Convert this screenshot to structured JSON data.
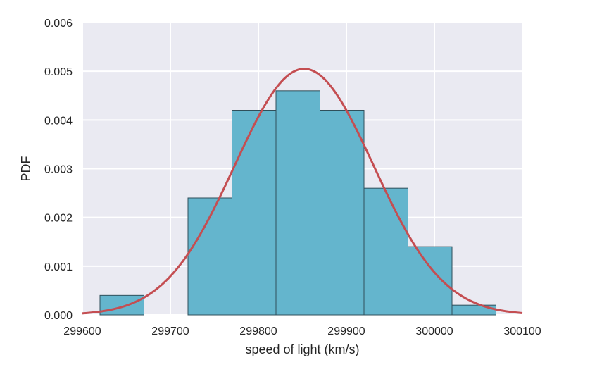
{
  "chart_data": {
    "type": "bar",
    "title": "",
    "xlabel": "speed of light (km/s)",
    "ylabel": "PDF",
    "xlim": [
      299600,
      300100
    ],
    "ylim": [
      0,
      0.006
    ],
    "x_ticks": [
      "299600",
      "299700",
      "299800",
      "299900",
      "300000",
      "300100"
    ],
    "y_ticks": [
      "0.000",
      "0.001",
      "0.002",
      "0.003",
      "0.004",
      "0.005",
      "0.006"
    ],
    "grid": true,
    "bins": [
      {
        "x0": 299620,
        "x1": 299670,
        "value": 0.0004
      },
      {
        "x0": 299670,
        "x1": 299720,
        "value": 0.0
      },
      {
        "x0": 299720,
        "x1": 299770,
        "value": 0.0024
      },
      {
        "x0": 299770,
        "x1": 299820,
        "value": 0.0042
      },
      {
        "x0": 299820,
        "x1": 299870,
        "value": 0.0046
      },
      {
        "x0": 299870,
        "x1": 299920,
        "value": 0.0042
      },
      {
        "x0": 299920,
        "x1": 299970,
        "value": 0.0026
      },
      {
        "x0": 299970,
        "x1": 300020,
        "value": 0.0014
      },
      {
        "x0": 300020,
        "x1": 300070,
        "value": 0.0002
      }
    ],
    "curve": {
      "type": "normal-pdf",
      "mean": 299852,
      "std": 79
    },
    "colors": {
      "background": "#EAEAF2",
      "grid": "#FFFFFF",
      "bar_fill": "#64B5CD",
      "bar_edge": "#2F4F5A",
      "curve": "#C44E52"
    }
  }
}
